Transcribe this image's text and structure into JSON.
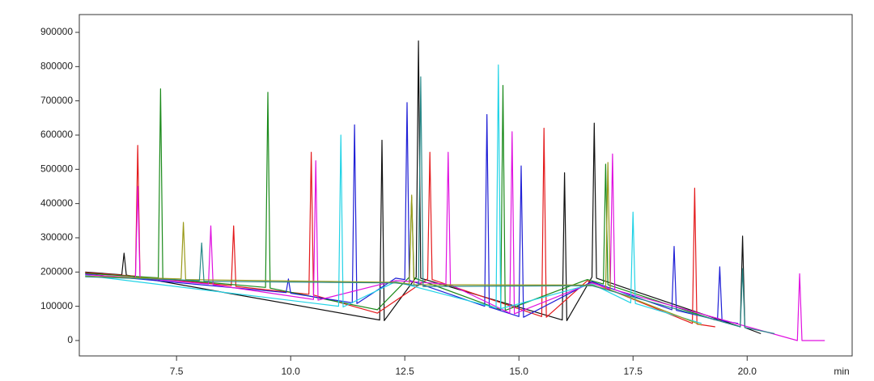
{
  "chart_data": {
    "type": "line",
    "x_label": "min",
    "xlim": [
      5.37,
      22.3
    ],
    "ylim": [
      -45000,
      952000
    ],
    "xticks": [
      {
        "value": 7.5,
        "label": "7.5"
      },
      {
        "value": 10,
        "label": "10.0"
      },
      {
        "value": 12.5,
        "label": "12.5"
      },
      {
        "value": 15,
        "label": "15.0"
      },
      {
        "value": 17.5,
        "label": "17.5"
      },
      {
        "value": 20,
        "label": "20.0"
      }
    ],
    "yticks": [
      0,
      100000,
      200000,
      300000,
      400000,
      500000,
      600000,
      700000,
      800000,
      900000
    ],
    "series": [
      {
        "color": "#111111",
        "x": [
          5.5,
          6.3,
          6.35,
          6.4,
          11.95,
          12.0,
          12.05,
          12.75,
          12.8,
          12.85,
          15.95,
          16.0,
          16.05,
          16.6,
          16.65,
          16.7,
          19.85,
          19.9,
          19.95,
          20.3
        ],
        "values": [
          200000,
          192000,
          255000,
          191000,
          60000,
          585000,
          58000,
          185000,
          875000,
          182000,
          60000,
          490000,
          58000,
          185000,
          635000,
          182000,
          40000,
          305000,
          38000,
          20000
        ]
      },
      {
        "color": "#e41a1c",
        "x": [
          5.5,
          6.6,
          6.65,
          6.7,
          8.7,
          8.75,
          8.8,
          10.4,
          10.45,
          10.5,
          11.9,
          13.0,
          13.05,
          13.1,
          15.5,
          15.55,
          15.6,
          16.5,
          18.8,
          18.85,
          18.9,
          19.3
        ],
        "values": [
          198000,
          188000,
          570000,
          186000,
          160000,
          335000,
          158000,
          135000,
          550000,
          133000,
          80000,
          180000,
          550000,
          178000,
          70000,
          620000,
          68000,
          175000,
          50000,
          445000,
          48000,
          40000
        ]
      },
      {
        "color": "#1a8a1a",
        "x": [
          5.5,
          7.1,
          7.15,
          7.2,
          9.45,
          9.5,
          9.55,
          11.9,
          12.6,
          12.65,
          12.7,
          14.6,
          14.65,
          14.7,
          16.5,
          16.85,
          16.9,
          16.95,
          19.3
        ],
        "values": [
          196000,
          183000,
          735000,
          181000,
          155000,
          725000,
          153000,
          90000,
          185000,
          420000,
          183000,
          90000,
          745000,
          88000,
          178000,
          165000,
          515000,
          163000,
          60000
        ]
      },
      {
        "color": "#1f1fd6",
        "x": [
          5.5,
          9.9,
          9.95,
          10.0,
          11.35,
          11.4,
          11.45,
          12.3,
          12.5,
          12.55,
          12.6,
          14.25,
          14.3,
          14.35,
          15.0,
          15.05,
          15.1,
          16.6,
          18.35,
          18.4,
          18.45,
          19.35,
          19.4,
          19.45,
          19.8
        ],
        "values": [
          194000,
          140000,
          180000,
          138000,
          110000,
          630000,
          108000,
          182000,
          178000,
          695000,
          176000,
          100000,
          660000,
          98000,
          70000,
          510000,
          68000,
          172000,
          90000,
          275000,
          88000,
          60000,
          215000,
          58000,
          50000
        ]
      },
      {
        "color": "#e011e0",
        "x": [
          5.5,
          6.6,
          6.65,
          6.7,
          8.2,
          8.25,
          8.3,
          10.5,
          10.55,
          10.6,
          12.3,
          13.4,
          13.45,
          13.5,
          14.8,
          14.85,
          14.9,
          16.6,
          17.0,
          17.05,
          17.1,
          21.1,
          21.15,
          21.2,
          21.7
        ],
        "values": [
          192000,
          184000,
          450000,
          182000,
          165000,
          335000,
          163000,
          120000,
          525000,
          118000,
          175000,
          165000,
          550000,
          163000,
          80000,
          610000,
          78000,
          168000,
          150000,
          545000,
          148000,
          0,
          195000,
          0,
          0
        ]
      },
      {
        "color": "#22d3e6",
        "x": [
          5.5,
          11.05,
          11.1,
          11.15,
          12.3,
          14.5,
          14.55,
          14.6,
          16.6,
          17.45,
          17.5,
          17.55,
          19.0
        ],
        "values": [
          190000,
          100000,
          600000,
          98000,
          172000,
          95000,
          805000,
          93000,
          165000,
          110000,
          375000,
          108000,
          50000
        ]
      },
      {
        "color": "#9a9a1a",
        "x": [
          5.5,
          7.6,
          7.65,
          7.7,
          12.3,
          12.6,
          12.65,
          12.7,
          16.6,
          16.9,
          16.95,
          17.0,
          19.0
        ],
        "values": [
          188000,
          180000,
          345000,
          178000,
          170000,
          165000,
          425000,
          163000,
          162000,
          150000,
          520000,
          148000,
          45000
        ]
      },
      {
        "color": "#2a8a8a",
        "x": [
          5.5,
          8.0,
          8.05,
          8.1,
          12.3,
          12.8,
          12.85,
          12.9,
          16.6,
          19.85,
          19.9,
          19.95,
          20.6
        ],
        "values": [
          186000,
          175000,
          285000,
          173000,
          168000,
          160000,
          770000,
          158000,
          160000,
          40000,
          210000,
          38000,
          20000
        ]
      }
    ]
  }
}
